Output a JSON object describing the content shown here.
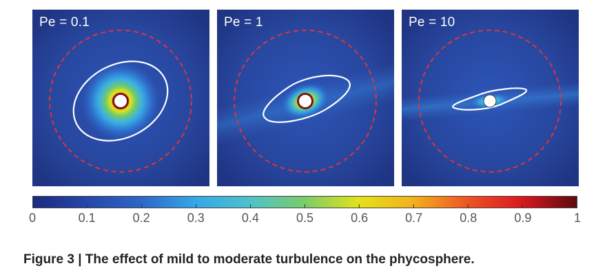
{
  "panels": [
    {
      "label": "Pe = 0.1"
    },
    {
      "label": "Pe = 1"
    },
    {
      "label": "Pe = 10"
    }
  ],
  "colorbar": {
    "ticks": [
      "0",
      "0.1",
      "0.2",
      "0.3",
      "0.4",
      "0.5",
      "0.6",
      "0.7",
      "0.8",
      "0.9",
      "1"
    ],
    "stops": [
      "#1b2a80",
      "#2747a9",
      "#2f67c6",
      "#35a8e8",
      "#4ec2c8",
      "#7ccc6a",
      "#e3e21a",
      "#f3b01d",
      "#ee5325",
      "#d8181f",
      "#5e0a0c"
    ]
  },
  "caption": {
    "figure_number": "Figure 3",
    "separator": "|",
    "text": "The effect of mild to moderate turbulence on the phycosphere."
  },
  "colors": {
    "background": "#2a4a9f",
    "dashed_circle": "#e0343a",
    "contour": "#ffffff"
  }
}
